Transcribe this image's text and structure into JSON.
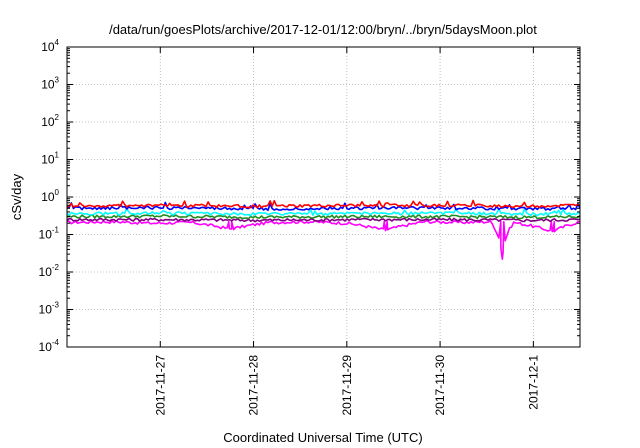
{
  "chart_data": {
    "type": "line",
    "title": "/data/run/goesPlots/archive/2017-12-01/12:00/bryn/../bryn/5daysMoon.plot",
    "xlabel": "Coordinated Universal Time (UTC)",
    "ylabel": "cSv/day",
    "y_scale": "log",
    "ylim": [
      0.0001,
      10000
    ],
    "y_ticks": [
      {
        "value": 0.0001,
        "base": "10",
        "exp": "-4"
      },
      {
        "value": 0.001,
        "base": "10",
        "exp": "-3"
      },
      {
        "value": 0.01,
        "base": "10",
        "exp": "-2"
      },
      {
        "value": 0.1,
        "base": "10",
        "exp": "-1"
      },
      {
        "value": 1,
        "base": "10",
        "exp": "0"
      },
      {
        "value": 10,
        "base": "10",
        "exp": "1"
      },
      {
        "value": 100,
        "base": "10",
        "exp": "2"
      },
      {
        "value": 1000,
        "base": "10",
        "exp": "3"
      },
      {
        "value": 10000,
        "base": "10",
        "exp": "4"
      }
    ],
    "xlim": [
      "2017-11-26 00:00",
      "2017-12-01 12:00"
    ],
    "x_ticks": [
      "2017-11-27",
      "2017-11-28",
      "2017-11-29",
      "2017-11-30",
      "2017-12-1"
    ],
    "grid": true,
    "legend": "none",
    "series": [
      {
        "color": "#ff00ff",
        "base": 0.22,
        "x": [
          "2017-11-26 00:00",
          "2017-11-26 12:00",
          "2017-11-26 22:00",
          "2017-11-27 08:00",
          "2017-11-27 18:00",
          "2017-11-28 04:00",
          "2017-11-28 14:00",
          "2017-11-29 00:00",
          "2017-11-29 10:00",
          "2017-11-29 20:00",
          "2017-11-30 06:00",
          "2017-11-30 13:00",
          "2017-11-30 16:00",
          "2017-11-30 19:00",
          "2017-12-01 05:00",
          "2017-12-01 12:00"
        ],
        "values": [
          0.21,
          0.22,
          0.2,
          0.21,
          0.14,
          0.21,
          0.22,
          0.2,
          0.13,
          0.22,
          0.21,
          0.22,
          0.022,
          0.21,
          0.12,
          0.22
        ]
      },
      {
        "color": "#800080",
        "base": 0.25,
        "x": [
          "2017-11-26 00:00",
          "2017-11-27 00:00",
          "2017-11-28 00:00",
          "2017-11-29 00:00",
          "2017-11-30 00:00",
          "2017-12-01 00:00",
          "2017-12-01 12:00"
        ],
        "values": [
          0.25,
          0.25,
          0.24,
          0.25,
          0.25,
          0.24,
          0.25
        ]
      },
      {
        "color": "#228b22",
        "base": 0.3,
        "x": [
          "2017-11-26 00:00",
          "2017-11-27 00:00",
          "2017-11-28 00:00",
          "2017-11-29 00:00",
          "2017-11-30 00:00",
          "2017-12-01 00:00",
          "2017-12-01 12:00"
        ],
        "values": [
          0.3,
          0.31,
          0.29,
          0.3,
          0.3,
          0.29,
          0.3
        ]
      },
      {
        "color": "#00ffff",
        "base": 0.36,
        "x": [
          "2017-11-26 00:00",
          "2017-11-27 00:00",
          "2017-11-28 00:00",
          "2017-11-29 00:00",
          "2017-11-30 00:00",
          "2017-12-01 00:00",
          "2017-12-01 12:00"
        ],
        "values": [
          0.36,
          0.37,
          0.35,
          0.36,
          0.37,
          0.35,
          0.36
        ]
      },
      {
        "color": "#0000ff",
        "base": 0.5,
        "x": [
          "2017-11-26 00:00",
          "2017-11-27 00:00",
          "2017-11-28 00:00",
          "2017-11-29 00:00",
          "2017-11-30 00:00",
          "2017-12-01 00:00",
          "2017-12-01 12:00"
        ],
        "values": [
          0.5,
          0.52,
          0.48,
          0.5,
          0.51,
          0.49,
          0.5
        ]
      },
      {
        "color": "#ff0000",
        "base": 0.58,
        "x": [
          "2017-11-26 00:00",
          "2017-11-27 00:00",
          "2017-11-28 00:00",
          "2017-11-29 00:00",
          "2017-11-30 00:00",
          "2017-12-01 00:00",
          "2017-12-01 12:00"
        ],
        "values": [
          0.58,
          0.6,
          0.57,
          0.59,
          0.6,
          0.57,
          0.6
        ]
      }
    ]
  }
}
